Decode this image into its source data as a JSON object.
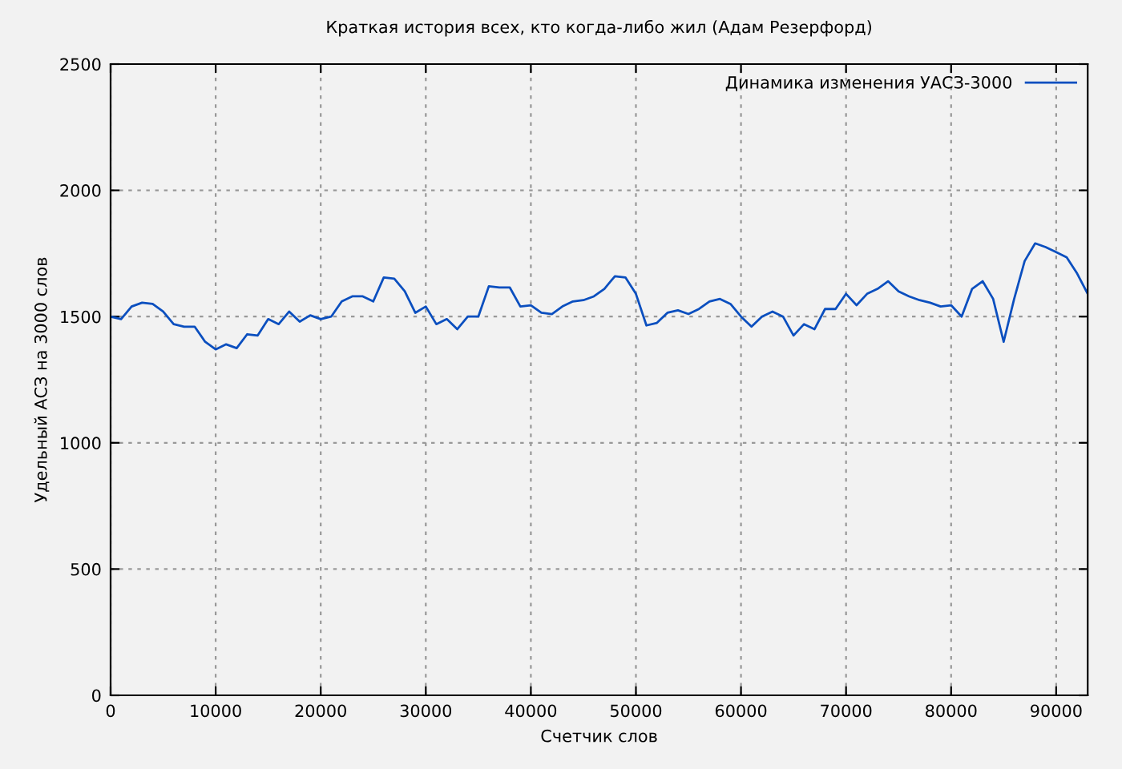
{
  "chart_data": {
    "type": "line",
    "title": "Краткая история всех, кто когда-либо жил (Адам Резерфорд)",
    "xlabel": "Счетчик слов",
    "ylabel": "Удельный АСЗ на 3000 слов",
    "x": [
      0,
      1000,
      2000,
      3000,
      4000,
      5000,
      6000,
      7000,
      8000,
      9000,
      10000,
      11000,
      12000,
      13000,
      14000,
      15000,
      16000,
      17000,
      18000,
      19000,
      20000,
      21000,
      22000,
      23000,
      24000,
      25000,
      26000,
      27000,
      28000,
      29000,
      30000,
      31000,
      32000,
      33000,
      34000,
      35000,
      36000,
      37000,
      38000,
      39000,
      40000,
      41000,
      42000,
      43000,
      44000,
      45000,
      46000,
      47000,
      48000,
      49000,
      50000,
      51000,
      52000,
      53000,
      54000,
      55000,
      56000,
      57000,
      58000,
      59000,
      60000,
      61000,
      62000,
      63000,
      64000,
      65000,
      66000,
      67000,
      68000,
      69000,
      70000,
      71000,
      72000,
      73000,
      74000,
      75000,
      76000,
      77000,
      78000,
      79000,
      80000,
      81000,
      82000,
      83000,
      84000,
      85000,
      86000,
      87000,
      88000,
      89000,
      90000,
      91000,
      92000,
      93000
    ],
    "series": [
      {
        "name": "Динамика изменения УАСЗ-3000",
        "color": "#0b4fbf",
        "values": [
          1500,
          1490,
          1540,
          1555,
          1550,
          1520,
          1470,
          1460,
          1460,
          1400,
          1370,
          1390,
          1375,
          1430,
          1425,
          1490,
          1470,
          1520,
          1480,
          1505,
          1490,
          1500,
          1560,
          1580,
          1580,
          1560,
          1655,
          1650,
          1600,
          1515,
          1540,
          1470,
          1490,
          1450,
          1500,
          1500,
          1620,
          1615,
          1615,
          1540,
          1545,
          1515,
          1510,
          1540,
          1560,
          1565,
          1580,
          1610,
          1660,
          1655,
          1590,
          1465,
          1475,
          1515,
          1525,
          1510,
          1530,
          1560,
          1570,
          1550,
          1500,
          1460,
          1500,
          1520,
          1500,
          1425,
          1470,
          1450,
          1530,
          1530,
          1590,
          1545,
          1590,
          1610,
          1640,
          1600,
          1580,
          1565,
          1555,
          1540,
          1545,
          1500,
          1610,
          1640,
          1570,
          1400,
          1570,
          1720,
          1790,
          1775,
          1755,
          1735,
          1670,
          1590
        ]
      }
    ],
    "xlim": [
      0,
      93000
    ],
    "xticks": [
      0,
      10000,
      20000,
      30000,
      40000,
      50000,
      60000,
      70000,
      80000,
      90000
    ],
    "ylim": [
      0,
      2500
    ],
    "yticks": [
      0,
      500,
      1000,
      1500,
      2000,
      2500
    ],
    "grid": true,
    "legend": "top right",
    "marker": "none",
    "line_style": "solid"
  }
}
